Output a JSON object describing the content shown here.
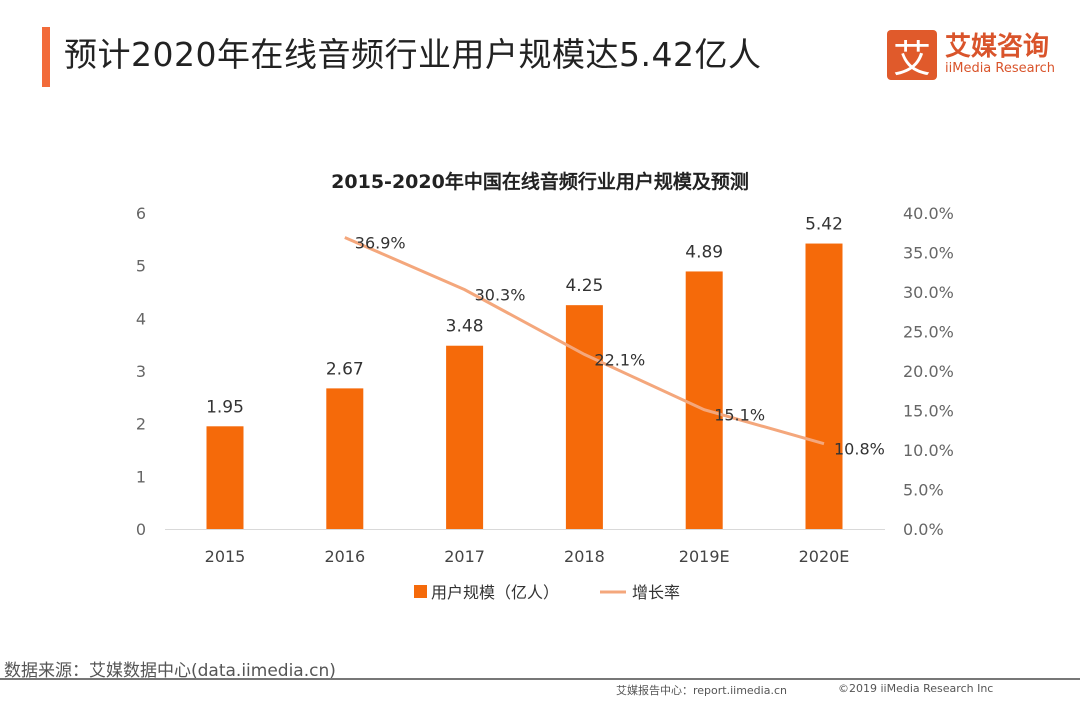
{
  "header": {
    "title": "预计2020年在线音频行业用户规模达5.42亿人"
  },
  "logo": {
    "mark": "艾",
    "cn": "艾媒咨询",
    "en": "iiMedia Research"
  },
  "footer": {
    "source": "数据来源：艾媒数据中心(data.iimedia.cn)",
    "report": "艾媒报告中心：report.iimedia.cn",
    "copyright": "©2019  iiMedia Research  Inc"
  },
  "colors": {
    "bar": "#f56a0a",
    "line": "#f4a77c",
    "accent": "#f26b3a"
  },
  "chart_data": {
    "type": "bar+line",
    "title": "2015-2020年中国在线音频行业用户规模及预测",
    "categories": [
      "2015",
      "2016",
      "2017",
      "2018",
      "2019E",
      "2020E"
    ],
    "series": [
      {
        "name": "用户规模（亿人）",
        "type": "bar",
        "axis": "left",
        "values": [
          1.95,
          2.67,
          3.48,
          4.25,
          4.89,
          5.42
        ],
        "labels": [
          "1.95",
          "2.67",
          "3.48",
          "4.25",
          "4.89",
          "5.42"
        ]
      },
      {
        "name": "增长率",
        "type": "line",
        "axis": "right",
        "values": [
          null,
          36.9,
          30.3,
          22.1,
          15.1,
          10.8
        ],
        "labels": [
          "",
          "36.9%",
          "30.3%",
          "22.1%",
          "15.1%",
          "10.8%"
        ]
      }
    ],
    "y_left": {
      "range": [
        0,
        6
      ],
      "ticks": [
        "0",
        "1",
        "2",
        "3",
        "4",
        "5",
        "6"
      ]
    },
    "y_right": {
      "range": [
        0,
        40
      ],
      "ticks": [
        "0.0%",
        "5.0%",
        "10.0%",
        "15.0%",
        "20.0%",
        "25.0%",
        "30.0%",
        "35.0%",
        "40.0%"
      ]
    },
    "grid": false,
    "legend": "bottom"
  }
}
